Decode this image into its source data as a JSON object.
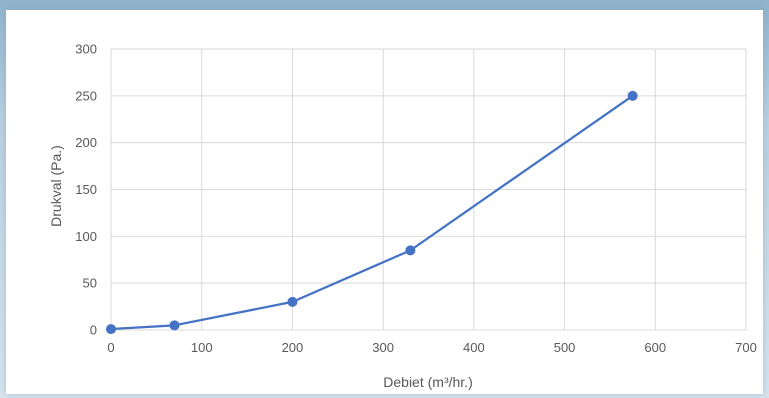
{
  "chart_data": {
    "type": "line",
    "title": "",
    "xlabel": "Debiet (m³/hr.)",
    "ylabel": "Drukval (Pa.)",
    "xlim": [
      0,
      700
    ],
    "ylim": [
      0,
      300
    ],
    "x_ticks": [
      0,
      100,
      200,
      300,
      400,
      500,
      600,
      700
    ],
    "y_ticks": [
      0,
      50,
      100,
      150,
      200,
      250,
      300
    ],
    "grid": true,
    "legend": "none",
    "series": [
      {
        "color": "#4472c4",
        "points": [
          {
            "x": 0,
            "y": 1
          },
          {
            "x": 70,
            "y": 5
          },
          {
            "x": 200,
            "y": 30
          },
          {
            "x": 330,
            "y": 85
          },
          {
            "x": 575,
            "y": 250
          }
        ]
      }
    ]
  }
}
